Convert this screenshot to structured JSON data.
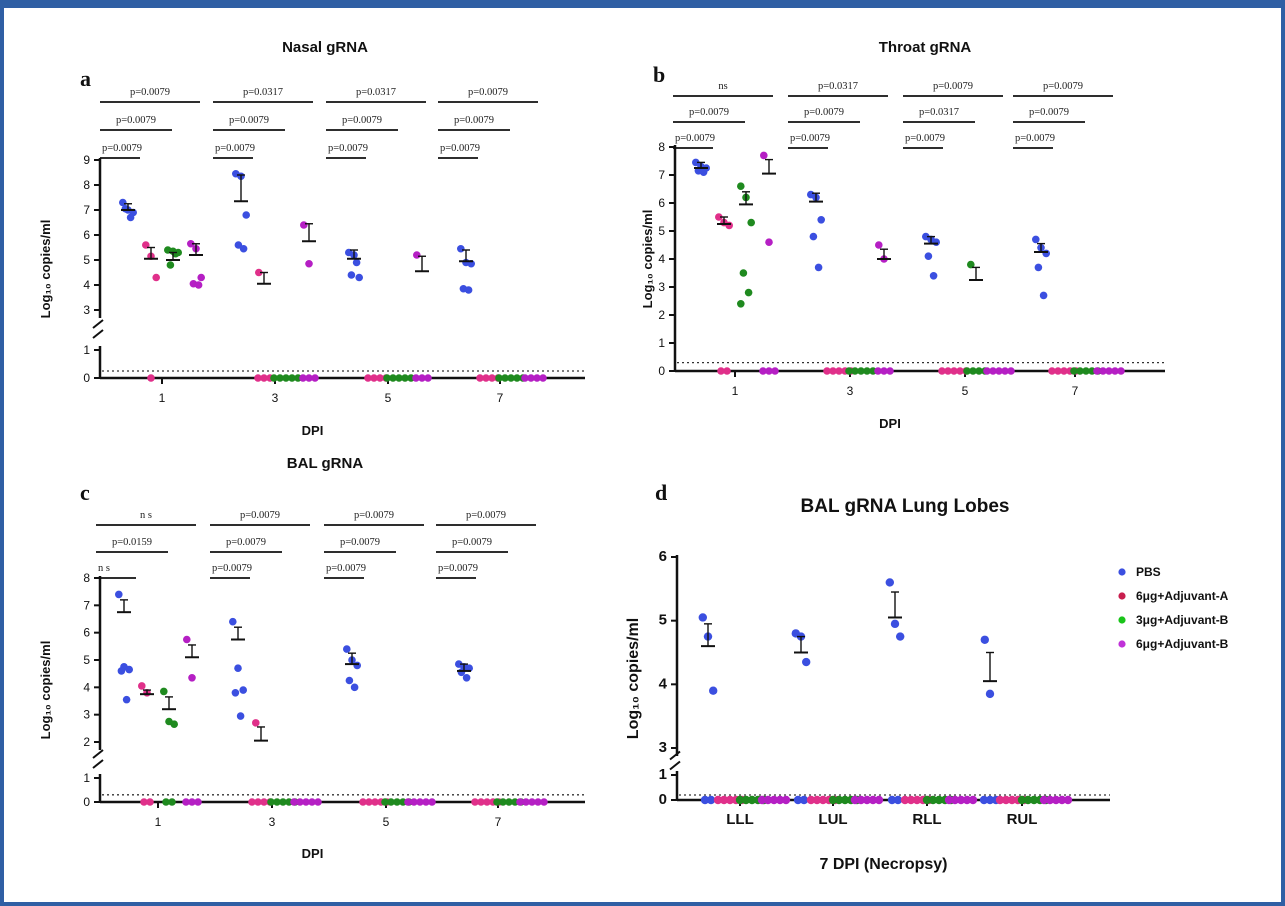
{
  "colors": {
    "pbs": "#3b4fe0",
    "a6": "#e0308a",
    "b3": "#1f8a1f",
    "b6": "#b51fc4"
  },
  "legend": {
    "items": [
      {
        "label": "PBS",
        "color": "#3b4fe0"
      },
      {
        "label": "6μg+Adjuvant-A",
        "color": "#c81e4e"
      },
      {
        "label": "3μg+Adjuvant-B",
        "color": "#19c419"
      },
      {
        "label": "6μg+Adjuvant-B",
        "color": "#c032d8"
      }
    ]
  },
  "chart_data": [
    {
      "panel": "a",
      "type": "scatter",
      "title": "Nasal gRNA",
      "xlabel": "DPI",
      "ylabel": "Log₁₀ copies/ml",
      "categories": [
        "1",
        "3",
        "5",
        "7"
      ],
      "y_ticks_upper": [
        "3",
        "4",
        "5",
        "6",
        "7",
        "8",
        "9"
      ],
      "y_ticks_lower": [
        "0",
        "1"
      ],
      "ylim_upper": [
        3,
        9
      ],
      "ylim_lower": [
        0,
        1
      ],
      "lod": 0.25,
      "series": [
        {
          "values": [
            [
              7.3,
              7.0,
              6.9,
              7.05,
              6.7
            ],
            [
              8.45,
              8.35,
              6.8,
              5.6,
              5.45
            ],
            [
              5.3,
              5.2,
              4.3,
              4.4,
              4.9
            ],
            [
              5.45,
              4.9,
              4.85,
              3.85,
              3.8
            ]
          ],
          "means": [
            7.0,
            7.35,
            5.05,
            4.95
          ],
          "sds": [
            0.25,
            1.05,
            0.35,
            0.45
          ]
        },
        {
          "values": [
            [
              5.6,
              5.15,
              4.3,
              0
            ],
            [
              4.5,
              0,
              0,
              0
            ],
            [
              0,
              0,
              0,
              0
            ],
            [
              0,
              0,
              0,
              0
            ]
          ],
          "means": [
            5.05,
            4.05,
            0,
            0
          ],
          "sds": [
            0.45,
            0.45,
            0,
            0
          ]
        },
        {
          "values": [
            [
              5.4,
              5.35,
              5.3,
              4.8,
              5.25
            ],
            [
              0,
              0,
              0,
              0,
              0
            ],
            [
              0,
              0,
              0,
              0,
              0
            ],
            [
              0,
              0,
              0,
              0,
              0
            ]
          ],
          "means": [
            5.0,
            0,
            0,
            0
          ],
          "sds": [
            0.3,
            0,
            0,
            0
          ]
        },
        {
          "values": [
            [
              5.65,
              5.45,
              4.3,
              4.05,
              4.0
            ],
            [
              6.4,
              4.85,
              0,
              0,
              0
            ],
            [
              5.2,
              0,
              0,
              0
            ],
            [
              0,
              0,
              0,
              0
            ]
          ],
          "means": [
            5.2,
            5.75,
            4.55,
            0
          ],
          "sds": [
            0.45,
            0.7,
            0.6,
            0
          ]
        }
      ],
      "comparisons": [
        {
          "dpi": "1",
          "labels": [
            "p=0.0079",
            "p=0.0079",
            "p=0.0079"
          ]
        },
        {
          "dpi": "3",
          "labels": [
            "p=0.0079",
            "p=0.0079",
            "p=0.0317"
          ]
        },
        {
          "dpi": "5",
          "labels": [
            "p=0.0079",
            "p=0.0079",
            "p=0.0317"
          ]
        },
        {
          "dpi": "7",
          "labels": [
            "p=0.0079",
            "p=0.0079",
            "p=0.0079"
          ]
        }
      ]
    },
    {
      "panel": "b",
      "type": "scatter",
      "title": "Throat gRNA",
      "xlabel": "DPI",
      "ylabel": "Log₁₀ copies/ml",
      "categories": [
        "1",
        "3",
        "5",
        "7"
      ],
      "y_ticks": [
        "0",
        "1",
        "2",
        "3",
        "4",
        "5",
        "6",
        "7",
        "8"
      ],
      "ylim": [
        0,
        8
      ],
      "lod": 0.3,
      "series": [
        {
          "values": [
            [
              7.45,
              7.3,
              7.25,
              7.15,
              7.1
            ],
            [
              6.3,
              6.2,
              5.4,
              4.8,
              3.7
            ],
            [
              4.8,
              4.7,
              4.6,
              4.1,
              3.4
            ],
            [
              4.7,
              4.4,
              4.2,
              3.7,
              2.7
            ]
          ],
          "means": [
            7.25,
            6.05,
            4.55,
            4.25
          ],
          "sds": [
            0.2,
            0.3,
            0.25,
            0.3
          ]
        },
        {
          "values": [
            [
              5.5,
              5.3,
              5.2,
              0,
              0
            ],
            [
              0,
              0,
              0,
              0,
              0
            ],
            [
              0,
              0,
              0,
              0,
              0
            ],
            [
              0,
              0,
              0,
              0,
              0
            ]
          ],
          "means": [
            5.25,
            0,
            0,
            0
          ],
          "sds": [
            0.25,
            0,
            0,
            0
          ]
        },
        {
          "values": [
            [
              6.6,
              6.2,
              5.3,
              3.5,
              2.8,
              2.4
            ],
            [
              0,
              0,
              0,
              0,
              0
            ],
            [
              3.8,
              0,
              0,
              0,
              0
            ],
            [
              0,
              0,
              0,
              0,
              0
            ]
          ],
          "means": [
            5.95,
            0,
            3.25,
            0
          ],
          "sds": [
            0.45,
            0,
            0.45,
            0
          ]
        },
        {
          "values": [
            [
              7.7,
              4.6,
              0,
              0,
              0
            ],
            [
              4.5,
              4.0,
              0,
              0,
              0
            ],
            [
              0,
              0,
              0,
              0,
              0
            ],
            [
              0,
              0,
              0,
              0,
              0
            ]
          ],
          "means": [
            7.05,
            4.0,
            0,
            0
          ],
          "sds": [
            0.5,
            0.35,
            0,
            0
          ]
        }
      ],
      "comparisons": [
        {
          "dpi": "1",
          "labels": [
            "p=0.0079",
            "p=0.0079",
            "ns"
          ]
        },
        {
          "dpi": "3",
          "labels": [
            "p=0.0079",
            "p=0.0079",
            "p=0.0317"
          ]
        },
        {
          "dpi": "5",
          "labels": [
            "p=0.0079",
            "p=0.0317",
            "p=0.0079"
          ]
        },
        {
          "dpi": "7",
          "labels": [
            "p=0.0079",
            "p=0.0079",
            "p=0.0079"
          ]
        }
      ]
    },
    {
      "panel": "c",
      "type": "scatter",
      "title": "BAL gRNA",
      "xlabel": "DPI",
      "ylabel": "Log₁₀ copies/ml",
      "categories": [
        "1",
        "3",
        "5",
        "7"
      ],
      "y_ticks_upper": [
        "2",
        "3",
        "4",
        "5",
        "6",
        "7",
        "8"
      ],
      "y_ticks_lower": [
        "0",
        "1"
      ],
      "ylim_upper": [
        2,
        8
      ],
      "ylim_lower": [
        0,
        1
      ],
      "lod": 0.3,
      "series": [
        {
          "values": [
            [
              7.4,
              4.75,
              4.65,
              4.6,
              3.55
            ],
            [
              6.4,
              4.7,
              3.9,
              3.8,
              2.95
            ],
            [
              5.4,
              5.0,
              4.8,
              4.25,
              4.0
            ],
            [
              4.85,
              4.75,
              4.7,
              4.55,
              4.35
            ]
          ],
          "means": [
            6.75,
            5.75,
            4.85,
            4.6
          ],
          "sds": [
            0.45,
            0.45,
            0.4,
            0.25
          ]
        },
        {
          "values": [
            [
              4.05,
              3.8,
              0,
              0
            ],
            [
              2.7,
              0,
              0,
              0,
              0
            ],
            [
              0,
              0,
              0,
              0,
              0
            ],
            [
              0,
              0,
              0,
              0,
              0
            ]
          ],
          "means": [
            3.75,
            2.05,
            0,
            0
          ],
          "sds": [
            0.15,
            0.5,
            0,
            0
          ]
        },
        {
          "values": [
            [
              3.85,
              2.75,
              2.65,
              0,
              0
            ],
            [
              0,
              0,
              0,
              0,
              0
            ],
            [
              0,
              0,
              0,
              0,
              0
            ],
            [
              0,
              0,
              0,
              0,
              0
            ]
          ],
          "means": [
            3.2,
            0,
            0,
            0
          ],
          "sds": [
            0.45,
            0,
            0,
            0
          ]
        },
        {
          "values": [
            [
              5.75,
              4.35,
              0,
              0,
              0
            ],
            [
              0,
              0,
              0,
              0,
              0
            ],
            [
              0,
              0,
              0,
              0,
              0
            ],
            [
              0,
              0,
              0,
              0,
              0
            ]
          ],
          "means": [
            5.1,
            0,
            0,
            0
          ],
          "sds": [
            0.45,
            0,
            0,
            0
          ]
        }
      ],
      "comparisons": [
        {
          "dpi": "1",
          "labels": [
            "n s",
            "p=0.0159",
            "n s"
          ]
        },
        {
          "dpi": "3",
          "labels": [
            "p=0.0079",
            "p=0.0079",
            "p=0.0079"
          ]
        },
        {
          "dpi": "5",
          "labels": [
            "p=0.0079",
            "p=0.0079",
            "p=0.0079"
          ]
        },
        {
          "dpi": "7",
          "labels": [
            "p=0.0079",
            "p=0.0079",
            "p=0.0079"
          ]
        }
      ]
    },
    {
      "panel": "d",
      "type": "scatter",
      "title": "BAL gRNA Lung Lobes",
      "xlabel": "7 DPI (Necropsy)",
      "ylabel": "Log₁₀ copies/ml",
      "categories": [
        "LLL",
        "LUL",
        "RLL",
        "RUL"
      ],
      "y_ticks_upper": [
        "3",
        "4",
        "5",
        "6"
      ],
      "y_ticks_lower": [
        "0",
        "1"
      ],
      "ylim_upper": [
        3,
        6
      ],
      "ylim_lower": [
        0,
        1
      ],
      "lod": 0.2,
      "series": [
        {
          "values": [
            [
              5.05,
              4.75,
              3.9,
              0,
              0
            ],
            [
              4.8,
              4.75,
              4.35,
              0,
              0
            ],
            [
              5.6,
              4.95,
              4.75,
              0,
              0
            ],
            [
              4.7,
              3.85,
              0,
              0,
              0
            ]
          ],
          "means": [
            4.6,
            4.5,
            5.05,
            4.05
          ],
          "sds": [
            0.35,
            0.25,
            0.4,
            0.45
          ]
        },
        {
          "values": [
            [
              0,
              0,
              0,
              0,
              0
            ],
            [
              0,
              0,
              0,
              0,
              0
            ],
            [
              0,
              0,
              0,
              0,
              0
            ],
            [
              0,
              0,
              0,
              0,
              0
            ]
          ],
          "means": [
            0,
            0,
            0,
            0
          ],
          "sds": [
            0,
            0,
            0,
            0
          ]
        },
        {
          "values": [
            [
              0,
              0,
              0,
              0,
              0
            ],
            [
              0,
              0,
              0,
              0,
              0
            ],
            [
              0,
              0,
              0,
              0,
              0
            ],
            [
              0,
              0,
              0,
              0,
              0
            ]
          ],
          "means": [
            0,
            0,
            0,
            0
          ],
          "sds": [
            0,
            0,
            0,
            0
          ]
        },
        {
          "values": [
            [
              0,
              0,
              0,
              0,
              0
            ],
            [
              0,
              0,
              0,
              0,
              0
            ],
            [
              0,
              0,
              0,
              0,
              0
            ],
            [
              0,
              0,
              0,
              0,
              0
            ]
          ],
          "means": [
            0,
            0,
            0,
            0
          ],
          "sds": [
            0,
            0,
            0,
            0
          ]
        }
      ],
      "comparisons": []
    }
  ]
}
